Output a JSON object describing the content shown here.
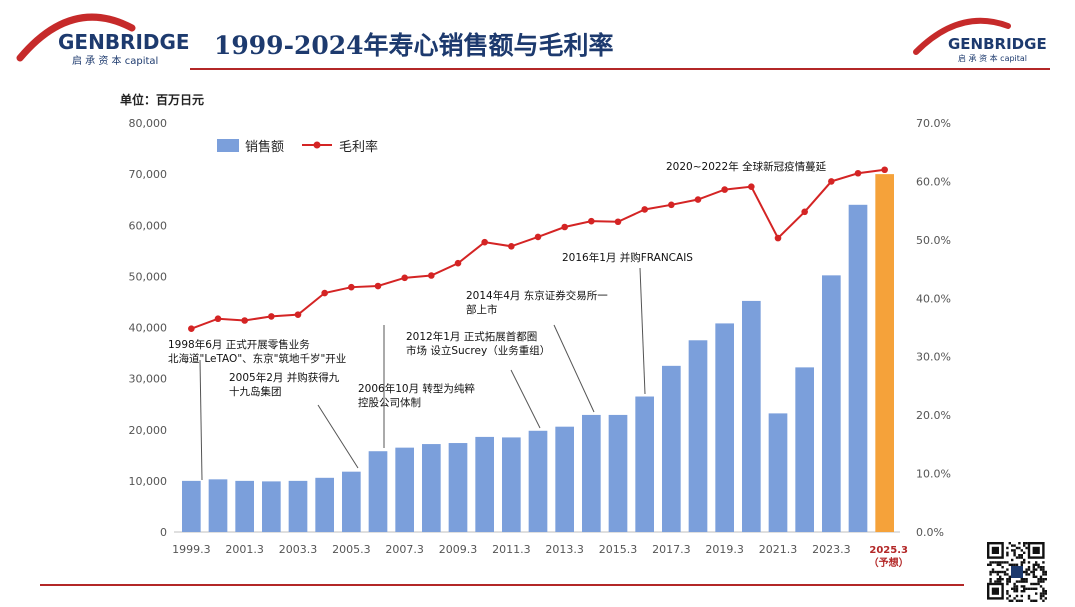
{
  "header": {
    "title": "1999-2024年寿心销售额与毛利率",
    "logo_name": "GENBRIDGE",
    "logo_sub": "启 承 资 本 capital"
  },
  "colors": {
    "bar": "#7b9fdb",
    "bar_forecast": "#f5a23a",
    "line": "#d42424",
    "brand": "#1d3a6e",
    "accent": "#b32727"
  },
  "icons": {
    "qr": "qr-code-icon"
  },
  "chart_data": {
    "type": "bar",
    "unit_label": "单位：百万日元",
    "legend": [
      "销售额",
      "毛利率"
    ],
    "legend_position": "top-left",
    "grid": false,
    "xlabels": [
      "1999.3",
      "2001.3",
      "2003.3",
      "2005.3",
      "2007.3",
      "2009.3",
      "2011.3",
      "2013.3",
      "2015.3",
      "2017.3",
      "2019.3",
      "2021.3",
      "2023.3"
    ],
    "forecast_label": [
      "2025.3",
      "（予想）"
    ],
    "y_left_ticks": [
      "0",
      "10,000",
      "20,000",
      "30,000",
      "40,000",
      "50,000",
      "60,000",
      "70,000",
      "80,000"
    ],
    "y_right_ticks": [
      "0.0%",
      "10.0%",
      "20.0%",
      "30.0%",
      "40.0%",
      "50.0%",
      "60.0%",
      "70.0%"
    ],
    "ylim_left": [
      0,
      80000
    ],
    "ylim_right": [
      0,
      70
    ],
    "series": [
      {
        "name": "销售额",
        "type": "bar",
        "values": [
          10000,
          10300,
          10000,
          9900,
          10000,
          10600,
          11800,
          15800,
          16500,
          17200,
          17400,
          18600,
          18500,
          19800,
          20600,
          22900,
          22900,
          26500,
          32500,
          37500,
          40800,
          45200,
          23200,
          32200,
          50200,
          64000,
          70000
        ]
      },
      {
        "name": "毛利率",
        "type": "line",
        "values": [
          34.8,
          36.5,
          36.2,
          36.9,
          37.2,
          40.9,
          41.9,
          42.1,
          43.5,
          43.9,
          46.0,
          49.6,
          48.9,
          50.5,
          52.2,
          53.2,
          53.1,
          55.2,
          56.0,
          56.9,
          58.6,
          59.1,
          50.3,
          54.8,
          60.0,
          61.4,
          62.0
        ]
      }
    ],
    "annotations": [
      {
        "text": [
          "1998年6月 正式开展零售业务",
          "北海道\"LeTAO\"、东京\"筑地千岁\"开业"
        ],
        "bar_index": 0
      },
      {
        "text": [
          "2005年2月 并购获得九",
          "十九岛集团"
        ],
        "bar_index": 6
      },
      {
        "text": [
          "2006年10月 转型为纯粹",
          "控股公司体制"
        ],
        "bar_index": 7
      },
      {
        "text": [
          "2012年1月 正式拓展首都圈",
          "市场 设立Sucrey（业务重组）"
        ],
        "bar_index": 13
      },
      {
        "text": [
          "2014年4月 东京证券交易所一",
          "部上市"
        ],
        "bar_index": 15
      },
      {
        "text": [
          "2016年1月 并购FRANCAIS"
        ],
        "bar_index": 17
      },
      {
        "text": [
          "2020~2022年 全球新冠疫情蔓延"
        ],
        "bar_index": null
      }
    ]
  }
}
